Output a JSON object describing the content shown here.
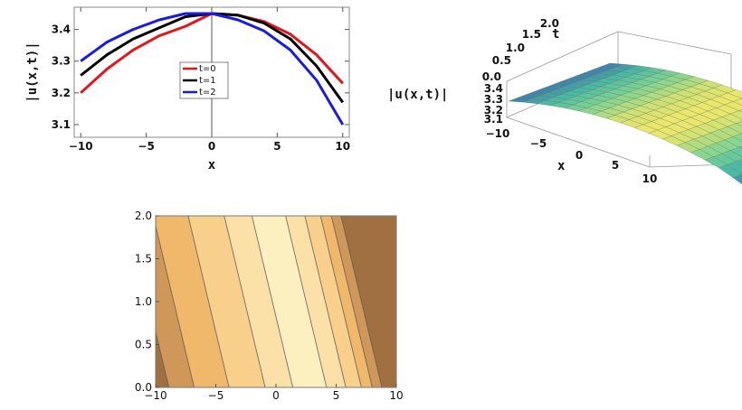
{
  "chart_data": [
    {
      "id": "line",
      "type": "line",
      "xlabel": "x",
      "ylabel": "|u(x,t)|",
      "xlim": [
        -10.5,
        10.5
      ],
      "ylim": [
        3.06,
        3.47
      ],
      "xticks": [
        -10,
        -5,
        0,
        5,
        10
      ],
      "yticks": [
        3.1,
        3.2,
        3.3,
        3.4
      ],
      "legend_position": "center",
      "series": [
        {
          "name": "t=0",
          "color": "#e8141b",
          "x": [
            -10,
            -8,
            -6,
            -4,
            -2,
            0,
            2,
            4,
            6,
            8,
            10
          ],
          "y": [
            3.2,
            3.275,
            3.335,
            3.38,
            3.41,
            3.45,
            3.445,
            3.425,
            3.385,
            3.32,
            3.23
          ]
        },
        {
          "name": "t=1",
          "color": "#000000",
          "x": [
            -10,
            -8,
            -6,
            -4,
            -2,
            0,
            2,
            4,
            6,
            8,
            10
          ],
          "y": [
            3.255,
            3.32,
            3.37,
            3.405,
            3.44,
            3.45,
            3.445,
            3.42,
            3.37,
            3.285,
            3.17
          ]
        },
        {
          "name": "t=2",
          "color": "#1a1ae6",
          "x": [
            -10,
            -8,
            -6,
            -4,
            -2,
            0,
            2,
            4,
            6,
            8,
            10
          ],
          "y": [
            3.3,
            3.36,
            3.4,
            3.43,
            3.45,
            3.45,
            3.43,
            3.395,
            3.335,
            3.24,
            3.1
          ]
        }
      ]
    },
    {
      "id": "surface",
      "type": "surface",
      "xlabel": "x",
      "ylabel": "t",
      "zlabel": "|u(x,t)|",
      "xticks": [
        -10,
        -5,
        0,
        5,
        10
      ],
      "yticks": [
        0.0,
        0.5,
        1.0,
        1.5,
        2.0
      ],
      "zticks": [
        3.1,
        3.2,
        3.3,
        3.4
      ]
    },
    {
      "id": "contour",
      "type": "contour",
      "xlim": [
        -10,
        10
      ],
      "ylim": [
        0,
        2
      ],
      "xticks": [
        -10,
        -5,
        0,
        5,
        10
      ],
      "yticks": [
        0.0,
        0.5,
        1.0,
        1.5,
        2.0
      ],
      "contour_x_at_t0": [
        -8.9,
        -6.8,
        -3.9,
        -0.9,
        1.4,
        4.2,
        5.8,
        7.1,
        8.0,
        8.8
      ],
      "contour_slope": -1.7,
      "band_colors": [
        "#a07040",
        "#d09858",
        "#f0b86a",
        "#f8d08c",
        "#fbe1a7",
        "#fdf0c0",
        "#fbe1a7",
        "#f8d08c",
        "#f0b86a",
        "#d09858",
        "#a07040",
        "#4a6fa8"
      ]
    }
  ]
}
